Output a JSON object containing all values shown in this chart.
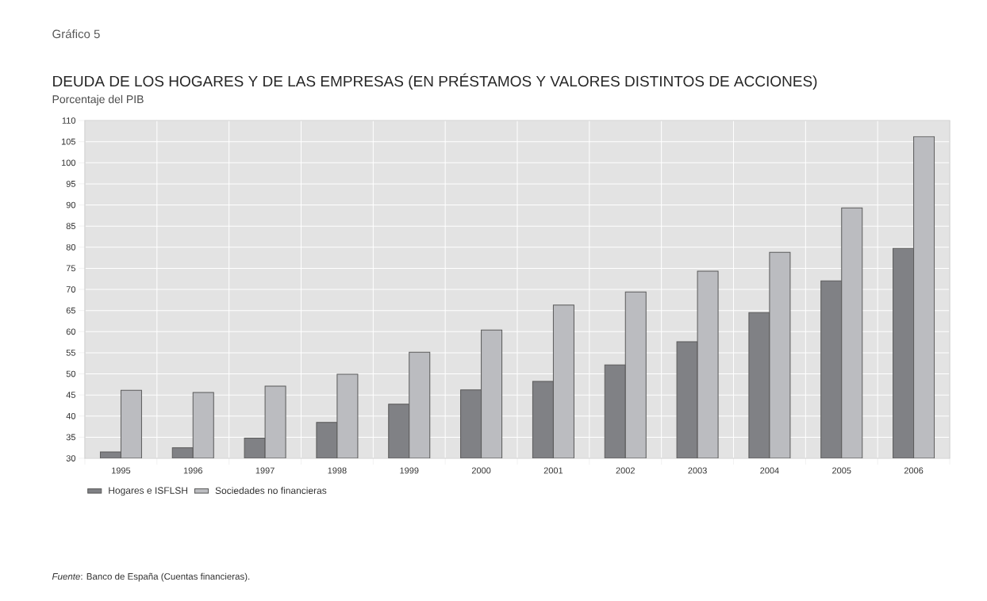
{
  "chart_data": {
    "type": "bar",
    "title": "Gráfico 5",
    "subtitle": "DEUDA DE LOS HOGARES Y DE LAS EMPRESAS (EN PRÉSTAMOS Y VALORES DISTINTOS DE ACCIONES)",
    "ylabel": "Porcentaje del PIB",
    "categories": [
      "1995",
      "1996",
      "1997",
      "1998",
      "1999",
      "2000",
      "2001",
      "2002",
      "2003",
      "2004",
      "2005",
      "2006"
    ],
    "series": [
      {
        "name": "Hogares e ISFLSH",
        "color": "#808185",
        "values": [
          31.5,
          32.5,
          34.8,
          38.5,
          42.8,
          46.2,
          48.2,
          52.1,
          57.6,
          64.5,
          72.0,
          79.7
        ]
      },
      {
        "name": "Sociedades no financieras",
        "color": "#bbbcc0",
        "values": [
          46.1,
          45.6,
          47.1,
          49.9,
          55.1,
          60.4,
          66.3,
          69.4,
          74.3,
          78.8,
          89.3,
          106.2
        ]
      }
    ],
    "ylim": [
      30,
      110
    ],
    "yticks": [
      30,
      35,
      40,
      45,
      50,
      55,
      60,
      65,
      70,
      75,
      80,
      85,
      90,
      95,
      100,
      105,
      110
    ],
    "grid": true,
    "legend": "bottom left",
    "annotations": [
      "*Fuente*: Banco de España (Cuentas financieras)."
    ]
  }
}
